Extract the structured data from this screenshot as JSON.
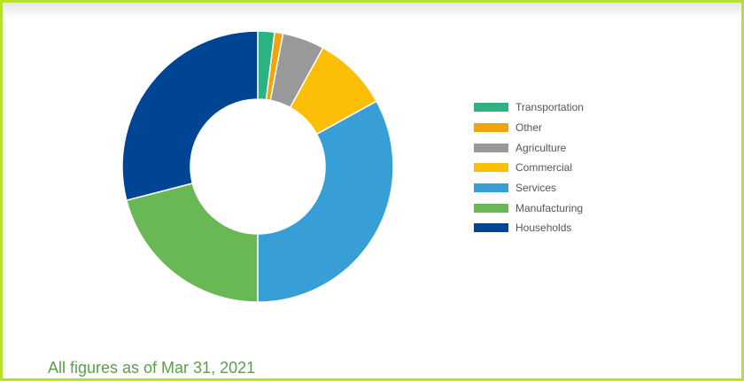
{
  "footnote": "All figures as of Mar 31, 2021",
  "chart_data": {
    "type": "pie",
    "variant": "donut",
    "title": "",
    "categories": [
      "Transportation",
      "Other",
      "Agriculture",
      "Commercial",
      "Services",
      "Manufacturing",
      "Households"
    ],
    "values": [
      2,
      1,
      5,
      9,
      33,
      21,
      29
    ],
    "unit": "%",
    "colors": [
      "#2db37f",
      "#f0a30a",
      "#999999",
      "#fbbf07",
      "#379ed6",
      "#6ab755",
      "#004593"
    ],
    "legend_position": "right",
    "start_angle_deg": 0,
    "direction": "clockwise"
  },
  "legend": {
    "items": [
      {
        "label": "Transportation",
        "color": "#2db37f"
      },
      {
        "label": "Other",
        "color": "#f0a30a"
      },
      {
        "label": "Agriculture",
        "color": "#999999"
      },
      {
        "label": "Commercial",
        "color": "#fbbf07"
      },
      {
        "label": "Services",
        "color": "#379ed6"
      },
      {
        "label": "Manufacturing",
        "color": "#6ab755"
      },
      {
        "label": "Households",
        "color": "#004593"
      }
    ]
  }
}
